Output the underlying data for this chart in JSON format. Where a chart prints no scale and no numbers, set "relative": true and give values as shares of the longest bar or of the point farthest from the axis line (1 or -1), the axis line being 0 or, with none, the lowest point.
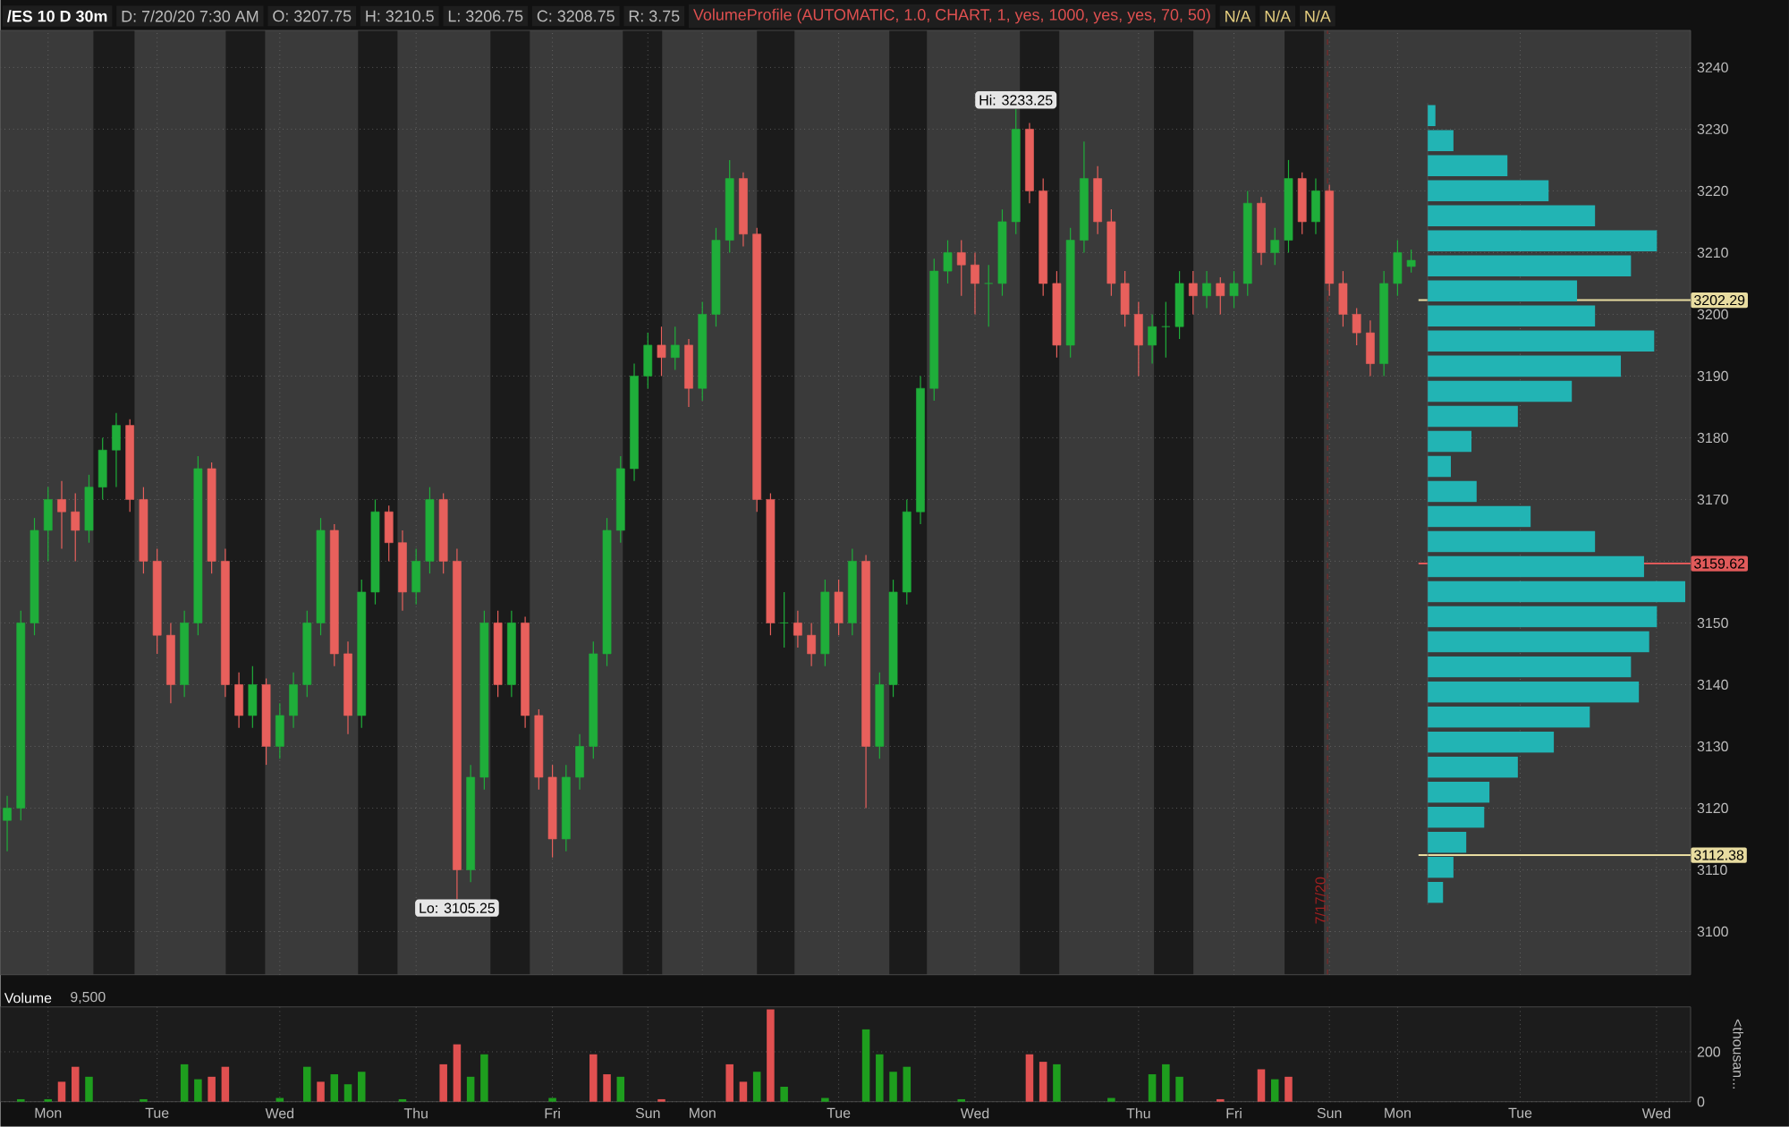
{
  "chart_data": [
    {
      "type": "candlestick",
      "title": "/ES 10 D 30m",
      "annotations": [
        "D: 7/20/20 7:30 AM",
        "O: 3207.75",
        "H: 3210.5",
        "L: 3206.75",
        "C: 3208.75",
        "R: 3.75",
        "VolumeProfile (AUTOMATIC, 1.0, CHART, 1, yes, 1000, yes, yes, 70, 50)",
        "N/A",
        "N/A",
        "N/A",
        "7/17/20",
        {
          "text": "Hi: 3233.25",
          "y": 3233.25
        },
        {
          "text": "Lo: 3105.25",
          "y": 3105.25
        }
      ],
      "categories": [
        null,
        null,
        null,
        null,
        null,
        null,
        null,
        null,
        null,
        null,
        null,
        null,
        null,
        null,
        null,
        null,
        null,
        null,
        null,
        null,
        null,
        null,
        null,
        null,
        null,
        null,
        null,
        null,
        null,
        null,
        null,
        null,
        null,
        null,
        null,
        null,
        null,
        null,
        null,
        null,
        null,
        null,
        null,
        null,
        null,
        null,
        null,
        null,
        null,
        null,
        null,
        null,
        null,
        null,
        null,
        null,
        null,
        null,
        null,
        null,
        null,
        null,
        null,
        null,
        null,
        null,
        null,
        null,
        null,
        null,
        null,
        null,
        null,
        null,
        null,
        null,
        null,
        null,
        null,
        null,
        null,
        null,
        null,
        null,
        null,
        null,
        null,
        null,
        null,
        null,
        null,
        null,
        null,
        null,
        null,
        null,
        null,
        null,
        null,
        null,
        null,
        null,
        null,
        null,
        null,
        null,
        null,
        null,
        null,
        null,
        null,
        null,
        null,
        null,
        null,
        null,
        null,
        null,
        null,
        null,
        null,
        null,
        null,
        null
      ],
      "ohlc": [
        [
          3118,
          3122,
          3113,
          3120
        ],
        [
          3120,
          3152,
          3118,
          3150
        ],
        [
          3150,
          3167,
          3148,
          3165
        ],
        [
          3165,
          3172,
          3160,
          3170
        ],
        [
          3170,
          3173,
          3162,
          3168
        ],
        [
          3168,
          3171,
          3160,
          3165
        ],
        [
          3165,
          3174,
          3163,
          3172
        ],
        [
          3172,
          3180,
          3170,
          3178
        ],
        [
          3178,
          3184,
          3172,
          3182
        ],
        [
          3182,
          3183,
          3168,
          3170
        ],
        [
          3170,
          3172,
          3158,
          3160
        ],
        [
          3160,
          3162,
          3145,
          3148
        ],
        [
          3148,
          3150,
          3137,
          3140
        ],
        [
          3140,
          3152,
          3138,
          3150
        ],
        [
          3150,
          3177,
          3148,
          3175
        ],
        [
          3175,
          3176,
          3158,
          3160
        ],
        [
          3160,
          3162,
          3138,
          3140
        ],
        [
          3140,
          3142,
          3133,
          3135
        ],
        [
          3135,
          3143,
          3133,
          3140
        ],
        [
          3140,
          3141,
          3127,
          3130
        ],
        [
          3130,
          3137,
          3128,
          3135
        ],
        [
          3135,
          3142,
          3133,
          3140
        ],
        [
          3140,
          3152,
          3138,
          3150
        ],
        [
          3150,
          3167,
          3148,
          3165
        ],
        [
          3165,
          3166,
          3143,
          3145
        ],
        [
          3145,
          3147,
          3132,
          3135
        ],
        [
          3135,
          3157,
          3133,
          3155
        ],
        [
          3155,
          3170,
          3153,
          3168
        ],
        [
          3168,
          3169,
          3160,
          3163
        ],
        [
          3163,
          3165,
          3152,
          3155
        ],
        [
          3155,
          3162,
          3153,
          3160
        ],
        [
          3160,
          3172,
          3158,
          3170
        ],
        [
          3170,
          3171,
          3158,
          3160
        ],
        [
          3160,
          3162,
          3105.25,
          3110
        ],
        [
          3110,
          3127,
          3108,
          3125
        ],
        [
          3125,
          3152,
          3123,
          3150
        ],
        [
          3150,
          3152,
          3138,
          3140
        ],
        [
          3140,
          3152,
          3138,
          3150
        ],
        [
          3150,
          3151,
          3133,
          3135
        ],
        [
          3135,
          3136,
          3123,
          3125
        ],
        [
          3125,
          3127,
          3112,
          3115
        ],
        [
          3115,
          3127,
          3113,
          3125
        ],
        [
          3125,
          3132,
          3123,
          3130
        ],
        [
          3130,
          3147,
          3128,
          3145
        ],
        [
          3145,
          3167,
          3143,
          3165
        ],
        [
          3165,
          3177,
          3163,
          3175
        ],
        [
          3175,
          3192,
          3173,
          3190
        ],
        [
          3190,
          3197,
          3188,
          3195
        ],
        [
          3195,
          3198,
          3190,
          3193
        ],
        [
          3193,
          3198,
          3191,
          3195
        ],
        [
          3195,
          3196,
          3185,
          3188
        ],
        [
          3188,
          3202,
          3186,
          3200
        ],
        [
          3200,
          3214,
          3198,
          3212
        ],
        [
          3212,
          3225,
          3210,
          3222
        ],
        [
          3222,
          3223,
          3211,
          3213
        ],
        [
          3213,
          3214,
          3168,
          3170
        ],
        [
          3170,
          3171,
          3148,
          3150
        ],
        [
          3150,
          3155,
          3146,
          3150
        ],
        [
          3150,
          3152,
          3146,
          3148
        ],
        [
          3148,
          3150,
          3143,
          3145
        ],
        [
          3145,
          3157,
          3143,
          3155
        ],
        [
          3155,
          3157,
          3148,
          3150
        ],
        [
          3150,
          3162,
          3148,
          3160
        ],
        [
          3160,
          3161,
          3120,
          3130
        ],
        [
          3130,
          3142,
          3128,
          3140
        ],
        [
          3140,
          3157,
          3138,
          3155
        ],
        [
          3155,
          3170,
          3153,
          3168
        ],
        [
          3168,
          3190,
          3166,
          3188
        ],
        [
          3188,
          3209,
          3186,
          3207
        ],
        [
          3207,
          3212,
          3205,
          3210
        ],
        [
          3210,
          3212,
          3203,
          3208
        ],
        [
          3208,
          3210,
          3200,
          3205
        ],
        [
          3205,
          3208,
          3198,
          3205
        ],
        [
          3205,
          3217,
          3203,
          3215
        ],
        [
          3215,
          3233.25,
          3213,
          3230
        ],
        [
          3230,
          3231,
          3218,
          3220
        ],
        [
          3220,
          3222,
          3203,
          3205
        ],
        [
          3205,
          3207,
          3193,
          3195
        ],
        [
          3195,
          3214,
          3193,
          3212
        ],
        [
          3212,
          3228,
          3210,
          3222
        ],
        [
          3222,
          3224,
          3213,
          3215
        ],
        [
          3215,
          3217,
          3203,
          3205
        ],
        [
          3205,
          3207,
          3198,
          3200
        ],
        [
          3200,
          3202,
          3190,
          3195
        ],
        [
          3195,
          3200,
          3192,
          3198
        ],
        [
          3198,
          3202,
          3193,
          3198
        ],
        [
          3198,
          3207,
          3196,
          3205
        ],
        [
          3205,
          3207,
          3200,
          3203
        ],
        [
          3203,
          3207,
          3201,
          3205
        ],
        [
          3205,
          3206,
          3200,
          3203
        ],
        [
          3203,
          3207,
          3201,
          3205
        ],
        [
          3205,
          3220,
          3203,
          3218
        ],
        [
          3218,
          3219,
          3208,
          3210
        ],
        [
          3210,
          3214,
          3208,
          3212
        ],
        [
          3212,
          3225,
          3210,
          3222
        ],
        [
          3222,
          3223,
          3213,
          3215
        ],
        [
          3215,
          3222,
          3213,
          3220
        ],
        [
          3220,
          3221,
          3203,
          3205
        ],
        [
          3205,
          3207,
          3198,
          3200
        ],
        [
          3200,
          3201,
          3195,
          3197
        ],
        [
          3197,
          3199,
          3190,
          3192
        ],
        [
          3192,
          3207,
          3190,
          3205
        ],
        [
          3205,
          3212,
          3203,
          3210
        ],
        [
          3207.75,
          3210.5,
          3206.75,
          3208.75
        ],
        null,
        null,
        null,
        null,
        null,
        null,
        null,
        null,
        null,
        null,
        null,
        null,
        null,
        null,
        null,
        null,
        null,
        null,
        null,
        null
      ],
      "ylim": [
        3093,
        3246
      ],
      "yticks": [
        3100,
        3110,
        3120,
        3130,
        3140,
        3150,
        {
          "value": 3160,
          "label": null
        },
        3170,
        3180,
        3190,
        3200,
        3210,
        3220,
        3230,
        3240
      ],
      "tick_labels": "y",
      "grid": true,
      "ref_lines": [
        {
          "axis": "y",
          "value": 3202.29,
          "label": "3202.29",
          "color": "#e8dca0"
        },
        {
          "axis": "y",
          "value": 3159.62,
          "label": "3159.62",
          "color": "#e05a5a"
        },
        {
          "axis": "y",
          "value": 3112.38,
          "label": "3112.38",
          "color": "#e8dca0"
        }
      ]
    },
    {
      "type": "bar",
      "title": "Volume",
      "subtitle": "9,500",
      "ylabel": "<thousan...",
      "categories": [
        null,
        null,
        null,
        "Mon",
        null,
        null,
        null,
        null,
        null,
        null,
        null,
        "Tue",
        null,
        null,
        null,
        null,
        null,
        null,
        null,
        null,
        "Wed",
        null,
        null,
        null,
        null,
        null,
        null,
        null,
        null,
        null,
        "Thu",
        null,
        null,
        null,
        null,
        null,
        null,
        null,
        null,
        null,
        "Fri",
        null,
        null,
        null,
        null,
        null,
        null,
        "Sun",
        null,
        null,
        null,
        "Mon",
        null,
        null,
        null,
        null,
        null,
        null,
        null,
        null,
        null,
        "Tue",
        null,
        null,
        null,
        null,
        null,
        null,
        null,
        null,
        null,
        "Wed",
        null,
        null,
        null,
        null,
        null,
        null,
        null,
        null,
        null,
        null,
        null,
        "Thu",
        null,
        null,
        null,
        null,
        null,
        null,
        "Fri",
        null,
        null,
        null,
        null,
        null,
        null,
        "Sun",
        null,
        null,
        null,
        null,
        "Mon",
        null,
        null,
        null,
        null,
        null,
        null,
        null,
        null,
        "Tue",
        null,
        null,
        null,
        null,
        null,
        null,
        null,
        null,
        null,
        "Wed",
        null,
        null
      ],
      "values": [
        null,
        10,
        null,
        10,
        80,
        140,
        100,
        null,
        null,
        null,
        10,
        null,
        null,
        150,
        90,
        100,
        140,
        null,
        null,
        null,
        15,
        null,
        140,
        80,
        110,
        70,
        120,
        null,
        null,
        10,
        null,
        null,
        150,
        230,
        100,
        190,
        null,
        null,
        null,
        null,
        15,
        null,
        null,
        190,
        110,
        100,
        null,
        null,
        10,
        null,
        null,
        null,
        null,
        150,
        80,
        120,
        370,
        60,
        null,
        null,
        15,
        null,
        null,
        290,
        190,
        120,
        140,
        null,
        null,
        null,
        10,
        null,
        null,
        null,
        null,
        190,
        160,
        150,
        null,
        null,
        null,
        15,
        null,
        null,
        110,
        150,
        100,
        null,
        null,
        10,
        null,
        null,
        130,
        90,
        100,
        null,
        null,
        null,
        null,
        null,
        null,
        null,
        null,
        null,
        null,
        null,
        null,
        null,
        null,
        null,
        null,
        null,
        null,
        null,
        null,
        null,
        null,
        null,
        null,
        null,
        null,
        null,
        null,
        null
      ],
      "colors": [
        "#1e9e1e",
        "#1e9e1e",
        "#1e9e1e",
        "#1e9e1e",
        "#e05050",
        "#e05050",
        "#1e9e1e",
        "#1e9e1e",
        "#1e9e1e",
        "#1e9e1e",
        "#1e9e1e",
        "#1e9e1e",
        "#1e9e1e",
        "#1e9e1e",
        "#1e9e1e",
        "#e05050",
        "#e05050",
        "#1e9e1e",
        "#1e9e1e",
        "#1e9e1e",
        "#1e9e1e",
        "#1e9e1e",
        "#1e9e1e",
        "#e05050",
        "#1e9e1e",
        "#1e9e1e",
        "#1e9e1e",
        "#1e9e1e",
        "#1e9e1e",
        "#1e9e1e",
        "#1e9e1e",
        "#1e9e1e",
        "#e05050",
        "#e05050",
        "#1e9e1e",
        "#1e9e1e",
        "#1e9e1e",
        "#1e9e1e",
        "#1e9e1e",
        "#1e9e1e",
        "#1e9e1e",
        "#1e9e1e",
        "#1e9e1e",
        "#e05050",
        "#e05050",
        "#1e9e1e",
        "#1e9e1e",
        "#1e9e1e",
        "#e05050",
        "#1e9e1e",
        "#1e9e1e",
        "#1e9e1e",
        "#1e9e1e",
        "#e05050",
        "#e05050",
        "#1e9e1e",
        "#e05050",
        "#1e9e1e",
        "#1e9e1e",
        "#1e9e1e",
        "#1e9e1e",
        "#1e9e1e",
        "#1e9e1e",
        "#1e9e1e",
        "#1e9e1e",
        "#1e9e1e",
        "#1e9e1e",
        "#1e9e1e",
        "#1e9e1e",
        "#1e9e1e",
        "#1e9e1e",
        "#1e9e1e",
        "#1e9e1e",
        "#1e9e1e",
        "#1e9e1e",
        "#e05050",
        "#e05050",
        "#1e9e1e",
        "#1e9e1e",
        "#1e9e1e",
        "#1e9e1e",
        "#1e9e1e",
        "#1e9e1e",
        "#1e9e1e",
        "#1e9e1e",
        "#1e9e1e",
        "#1e9e1e",
        "#1e9e1e",
        "#1e9e1e",
        "#e05050",
        "#1e9e1e",
        "#1e9e1e",
        "#e05050",
        "#1e9e1e",
        "#e05050",
        "#1e9e1e",
        "#1e9e1e",
        "#1e9e1e",
        "#1e9e1e",
        "#1e9e1e",
        "#1e9e1e",
        "#1e9e1e",
        "#1e9e1e",
        "#1e9e1e",
        "#1e9e1e",
        "#1e9e1e",
        "#1e9e1e",
        "#1e9e1e",
        "#1e9e1e",
        "#1e9e1e",
        "#1e9e1e",
        "#1e9e1e",
        "#1e9e1e",
        "#1e9e1e",
        "#1e9e1e",
        "#1e9e1e",
        "#1e9e1e",
        "#1e9e1e",
        "#1e9e1e",
        "#1e9e1e",
        "#1e9e1e",
        "#1e9e1e",
        "#1e9e1e",
        "#1e9e1e"
      ],
      "ylim": [
        0,
        380
      ],
      "yticks": [
        0,
        200
      ],
      "grid": true
    },
    {
      "type": "bar",
      "orientation": "horizontal",
      "relative": true,
      "color": "#22b4b4",
      "tick_labels": false,
      "categories": [
        null,
        null,
        null,
        null,
        null,
        null,
        null,
        null,
        null,
        null,
        null,
        null,
        null,
        null,
        null,
        null,
        null,
        null,
        null,
        null,
        null,
        null,
        null,
        null,
        null,
        null,
        null,
        null,
        null,
        null,
        null,
        null
      ],
      "values": [
        0.03,
        0.1,
        0.31,
        0.47,
        0.65,
        0.89,
        0.79,
        0.58,
        0.65,
        0.88,
        0.75,
        0.56,
        0.35,
        0.17,
        0.09,
        0.19,
        0.4,
        0.65,
        0.84,
        1,
        0.89,
        0.86,
        0.79,
        0.82,
        0.63,
        0.49,
        0.35,
        0.24,
        0.22,
        0.15,
        0.1,
        0.06
      ]
    }
  ]
}
